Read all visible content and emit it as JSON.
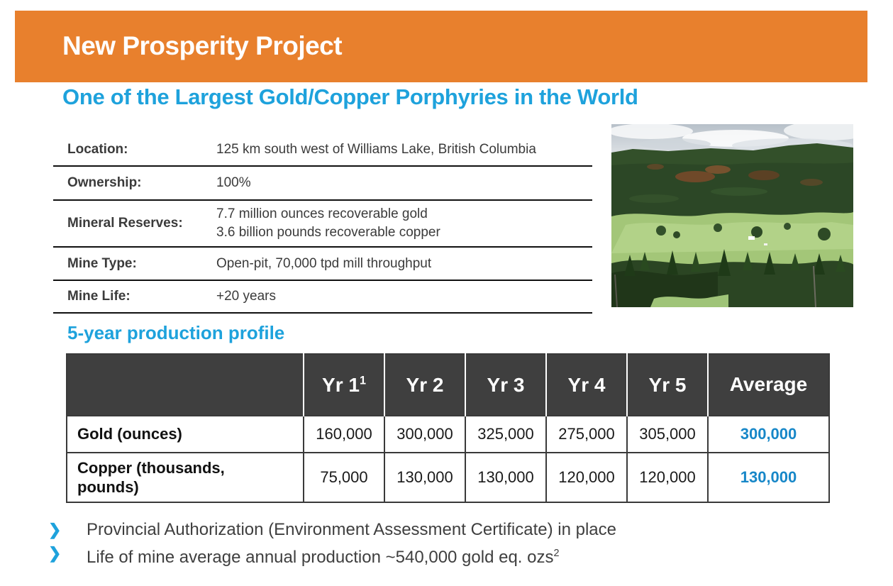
{
  "header": {
    "title": "New Prosperity Project"
  },
  "subtitle": "One of the Largest Gold/Copper Porphyries in the World",
  "info_table": {
    "rows": [
      {
        "label": "Location:",
        "values": [
          "125 km south west of Williams Lake, British Columbia"
        ]
      },
      {
        "label": "Ownership:",
        "values": [
          "100%"
        ]
      },
      {
        "label": "Mineral Reserves:",
        "values": [
          "7.7 million ounces recoverable gold",
          "3.6 billion pounds recoverable copper"
        ]
      },
      {
        "label": "Mine Type:",
        "values": [
          "Open-pit, 70,000 tpd mill throughput"
        ]
      },
      {
        "label": "Mine Life:",
        "values": [
          "+20 years"
        ]
      }
    ]
  },
  "photo": {
    "description": "aerial view of forested valley with meadow clearings"
  },
  "production": {
    "heading": "5-year production profile",
    "chart_data": {
      "type": "table",
      "columns": [
        {
          "label": "Yr 1",
          "sup": "1"
        },
        {
          "label": "Yr 2",
          "sup": ""
        },
        {
          "label": "Yr 3",
          "sup": ""
        },
        {
          "label": "Yr 4",
          "sup": ""
        },
        {
          "label": "Yr 5",
          "sup": ""
        },
        {
          "label": "Average",
          "sup": ""
        }
      ],
      "rows": [
        {
          "label": "Gold (ounces)",
          "values": [
            "160,000",
            "300,000",
            "325,000",
            "275,000",
            "305,000"
          ],
          "average": "300,000"
        },
        {
          "label": "Copper (thousands, pounds)",
          "values": [
            "75,000",
            "130,000",
            "130,000",
            "120,000",
            "120,000"
          ],
          "average": "130,000"
        }
      ]
    }
  },
  "bullets": [
    {
      "text": "Provincial Authorization (Environment Assessment Certificate) in place",
      "sup": ""
    },
    {
      "text": "Life of mine average annual production ~540,000 gold eq. ozs",
      "sup": "2"
    }
  ],
  "icons": {
    "bullet_chevron": "❯"
  },
  "colors": {
    "accent_orange": "#E8802D",
    "heading_blue": "#1EA2DC",
    "value_blue": "#1787C8",
    "table_header_gray": "#3F3F3F",
    "body_text_gray": "#3F3F3F"
  }
}
